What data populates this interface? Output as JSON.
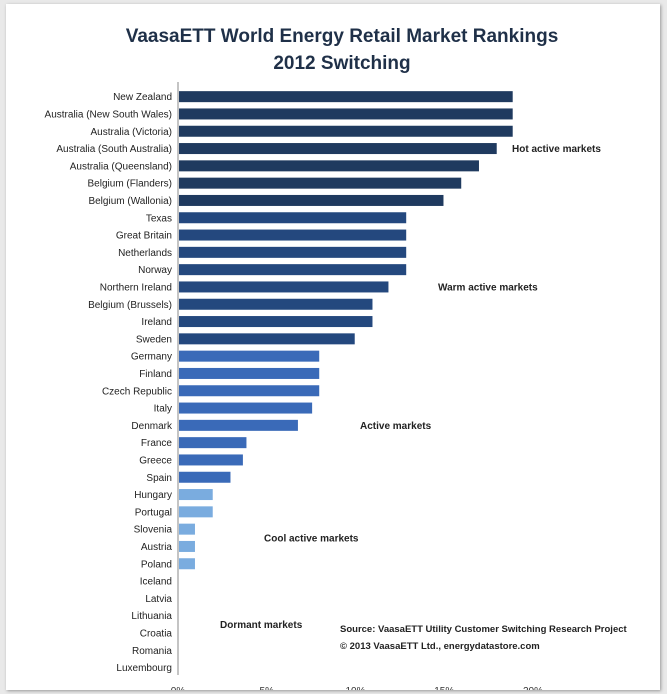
{
  "chart_data": {
    "type": "bar",
    "orientation": "horizontal",
    "title": [
      "VaasaETT World Energy Retail Market Rankings",
      "2012 Switching"
    ],
    "xlabel": "",
    "ylabel": "",
    "xlim": [
      0,
      20
    ],
    "ticks": [
      "0%",
      "5%",
      "10%",
      "15%",
      "20%"
    ],
    "categories": [
      "New Zealand",
      "Australia (New South Wales)",
      "Australia (Victoria)",
      "Australia (South Australia)",
      "Australia (Queensland)",
      "Belgium (Flanders)",
      "Belgium (Wallonia)",
      "Texas",
      "Great Britain",
      "Netherlands",
      "Norway",
      "Northern Ireland",
      "Belgium (Brussels)",
      "Ireland",
      "Sweden",
      "Germany",
      "Finland",
      "Czech Republic",
      "Italy",
      "Denmark",
      "France",
      "Greece",
      "Spain",
      "Hungary",
      "Portugal",
      "Slovenia",
      "Austria",
      "Poland",
      "Iceland",
      "Latvia",
      "Lithuania",
      "Croatia",
      "Romania",
      "Luxembourg"
    ],
    "values": [
      18.8,
      18.8,
      18.8,
      17.9,
      16.9,
      15.9,
      14.9,
      12.8,
      12.8,
      12.8,
      12.8,
      11.8,
      10.9,
      10.9,
      9.9,
      7.9,
      7.9,
      7.9,
      7.5,
      6.7,
      3.8,
      3.6,
      2.9,
      1.9,
      1.9,
      0.9,
      0.9,
      0.9,
      0,
      0,
      0,
      0,
      0,
      0
    ],
    "groups": [
      {
        "label": "Hot active markets",
        "from": 0,
        "to": 6,
        "color": "#1f3a5f"
      },
      {
        "label": "Warm active markets",
        "from": 7,
        "to": 14,
        "color": "#24487e"
      },
      {
        "label": "Active markets",
        "from": 15,
        "to": 22,
        "color": "#3a6ab8"
      },
      {
        "label": "Cool active markets",
        "from": 23,
        "to": 27,
        "color": "#7aacdf"
      },
      {
        "label": "Dormant markets",
        "from": 28,
        "to": 33,
        "color": "#b8d4ee"
      }
    ],
    "source": [
      "Source: VaasaETT  Utility Customer Switching Research Project",
      "© 2013 VaasaETT Ltd., energydatastore.com"
    ]
  }
}
